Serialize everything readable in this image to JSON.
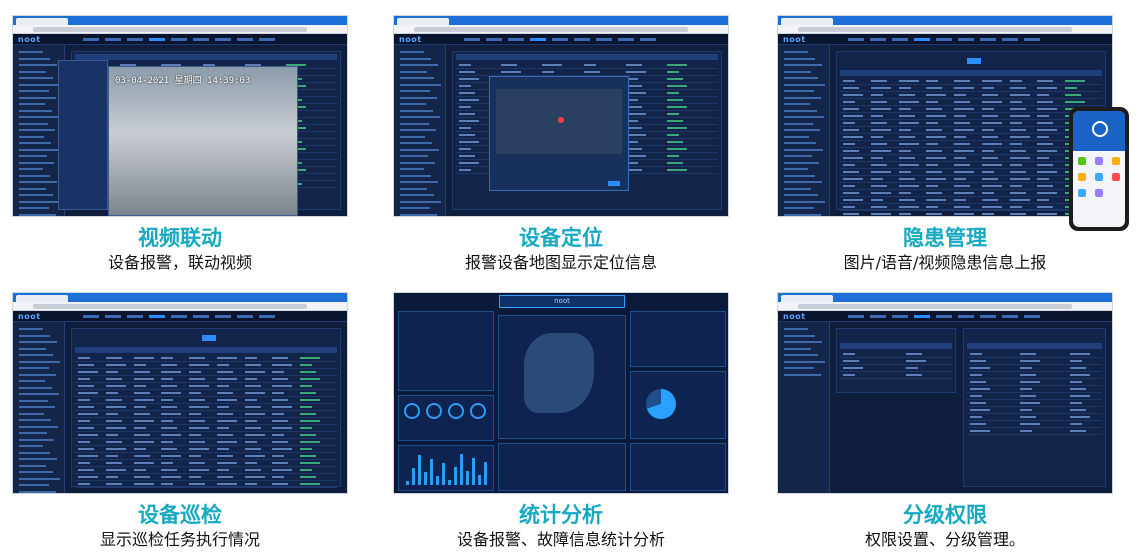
{
  "colors": {
    "title": "#17a9c1",
    "screen_bg": "#0f1e3d",
    "browser_tab": "#1b6fd6"
  },
  "features": [
    {
      "title": "视频联动",
      "subtitle": "设备报警，联动视频",
      "screen": "video"
    },
    {
      "title": "设备定位",
      "subtitle": "报警设备地图显示定位信息",
      "screen": "map"
    },
    {
      "title": "隐患管理",
      "subtitle": "图片/语音/视频隐患信息上报",
      "screen": "table-phone"
    },
    {
      "title": "设备巡检",
      "subtitle": "显示巡检任务执行情况",
      "screen": "table"
    },
    {
      "title": "统计分析",
      "subtitle": "设备报警、故障信息统计分析",
      "screen": "dashboard"
    },
    {
      "title": "分级权限",
      "subtitle": "权限设置、分级管理。",
      "screen": "permissions"
    }
  ],
  "video_timestamp": "03-04-2021 星期四 14:39:03",
  "logo": "noot"
}
